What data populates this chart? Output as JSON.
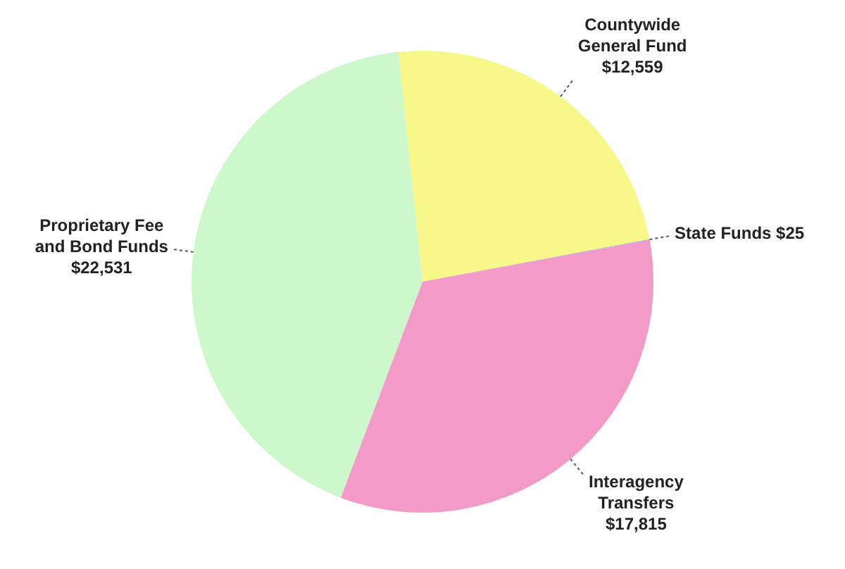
{
  "chart_data": {
    "type": "pie",
    "categories": [
      "Countywide General Fund",
      "State Funds",
      "Interagency Transfers",
      "Proprietary Fee and Bond Funds"
    ],
    "values": [
      12559,
      25,
      17815,
      22531
    ],
    "value_labels": [
      "$12,559",
      "$25",
      "$17,815",
      "$22,531"
    ],
    "colors": [
      "#f7f78a",
      "#8fa8e0",
      "#f49ac8",
      "#ccf8cc"
    ],
    "legend": false
  }
}
